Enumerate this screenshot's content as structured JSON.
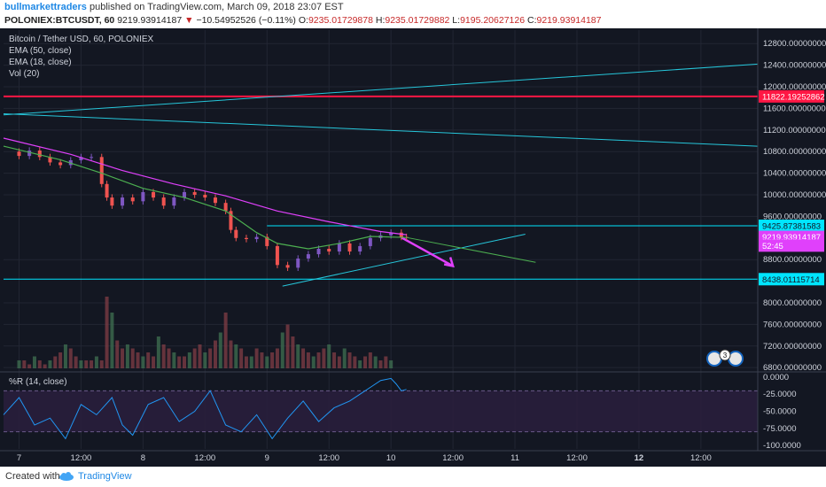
{
  "header": {
    "author": "bullmarkettraders",
    "published": "published on TradingView.com, March 09, 2018 23:07 EST",
    "symbol": "POLONIEX:BTCUSDT, 60",
    "last_price": "9219.93914187",
    "change": "−10.54952526 (−0.11%)",
    "open_label": "O:",
    "open": "9235.01729878",
    "high_label": "H:",
    "high": "9235.01729882",
    "low_label": "L:",
    "low": "9195.20627126",
    "close_label": "C:",
    "close": "9219.93914187"
  },
  "legend": {
    "title": "Bitcoin / Tether USD, 60, POLONIEX",
    "ema50": "EMA (50, close)",
    "ema18": "EMA (18, close)",
    "vol": "Vol (20)",
    "wr": "%R (14, close)"
  },
  "price_axis": {
    "ticks": [
      "12800.00000000",
      "12400.00000000",
      "12000.00000000",
      "11600.00000000",
      "11200.00000000",
      "10800.00000000",
      "10400.00000000",
      "10000.00000000",
      "9600.00000000",
      "8800.00000000",
      "8000.00000000",
      "7600.00000000",
      "7200.00000000",
      "6800.00000000"
    ],
    "tick_values": [
      12800,
      12400,
      12000,
      11600,
      11200,
      10800,
      10400,
      10000,
      9600,
      8800,
      8000,
      7600,
      7200,
      6800
    ],
    "range": [
      6770,
      13050
    ],
    "markers": [
      {
        "label": "11822.19252862",
        "value": 11822.19,
        "bg": "#ff1744",
        "fg": "#ffffff"
      },
      {
        "label": "9425.87381583",
        "value": 9425.87,
        "bg": "#00e5ff",
        "fg": "#131722"
      },
      {
        "label": "9219.93914187",
        "value": 9219.94,
        "bg": "#e040fb",
        "fg": "#ffffff"
      },
      {
        "label": "52:45",
        "value": 9060,
        "bg": "#e040fb",
        "fg": "#ffffff"
      },
      {
        "label": "8438.01115714",
        "value": 8438.01,
        "bg": "#00e5ff",
        "fg": "#131722"
      }
    ]
  },
  "wr_axis": {
    "ticks": [
      "0.0000",
      "-25.0000",
      "-50.0000",
      "-75.0000",
      "-100.0000"
    ],
    "tick_values": [
      0,
      -25,
      -50,
      -75,
      -100
    ],
    "range": [
      -105,
      5
    ]
  },
  "time_axis": {
    "labels": [
      {
        "t": "7",
        "x": 0.0,
        "bold": false
      },
      {
        "t": "12:00",
        "x": 12,
        "bold": false
      },
      {
        "t": "8",
        "x": 24,
        "bold": false
      },
      {
        "t": "12:00",
        "x": 36,
        "bold": false
      },
      {
        "t": "9",
        "x": 48,
        "bold": false
      },
      {
        "t": "12:00",
        "x": 60,
        "bold": false
      },
      {
        "t": "10",
        "x": 72,
        "bold": false
      },
      {
        "t": "12:00",
        "x": 84,
        "bold": false
      },
      {
        "t": "11",
        "x": 96,
        "bold": false
      },
      {
        "t": "12:00",
        "x": 108,
        "bold": false
      },
      {
        "t": "12",
        "x": 120,
        "bold": true
      },
      {
        "t": "12:00",
        "x": 132,
        "bold": false
      }
    ],
    "range_hours": [
      -3,
      143
    ]
  },
  "badges": {
    "flag_count": "3"
  },
  "footer": {
    "created": "Created with",
    "brand": "TradingView"
  },
  "colors": {
    "bg": "#131722",
    "up": "#7e57c2",
    "down": "#ef5350",
    "ema50": "#e040fb",
    "ema18": "#4caf50",
    "trend": "#26c6da",
    "res": "#ff1744",
    "sup": "#00e5ff",
    "arrow": "#e040fb",
    "wr": "#2196f3"
  },
  "chart_data": [
    {
      "type": "candlestick",
      "title": "Bitcoin / Tether USD, 60, POLONIEX",
      "x_unit": "hours since Mar 7 00:00",
      "ylim": [
        6770,
        13050
      ],
      "series": [
        {
          "name": "close (hourly, approx)",
          "t": [
            -2,
            0,
            2,
            4,
            6,
            8,
            10,
            12,
            14,
            16,
            17,
            18,
            20,
            22,
            24,
            26,
            28,
            30,
            32,
            34,
            36,
            38,
            40,
            41,
            42,
            44,
            46,
            48,
            50,
            52,
            54,
            56,
            58,
            60,
            62,
            64,
            66,
            68,
            70,
            72,
            74,
            75
          ],
          "values": [
            10800,
            10720,
            10820,
            10700,
            10600,
            10550,
            10640,
            10700,
            10700,
            10200,
            9950,
            9800,
            9950,
            9880,
            10050,
            9950,
            9800,
            9950,
            10050,
            10000,
            9950,
            9850,
            9700,
            9350,
            9200,
            9180,
            9220,
            9050,
            8700,
            8650,
            8820,
            8900,
            9000,
            8950,
            9100,
            8950,
            9050,
            9200,
            9250,
            9300,
            9220,
            9219.94
          ]
        },
        {
          "name": "EMA (50, close)",
          "t": [
            -3,
            10,
            20,
            30,
            40,
            50,
            60,
            70,
            75
          ],
          "values": [
            11050,
            10750,
            10450,
            10200,
            9980,
            9700,
            9500,
            9320,
            9260
          ]
        },
        {
          "name": "EMA (18, close)",
          "t": [
            -3,
            8,
            16,
            24,
            32,
            40,
            46,
            50,
            56,
            62,
            68,
            75
          ],
          "values": [
            10900,
            10650,
            10400,
            10120,
            9950,
            9700,
            9300,
            9100,
            9000,
            9100,
            9230,
            9210
          ]
        }
      ],
      "drawings": [
        {
          "name": "horizontal resistance",
          "price": 11822.19
        },
        {
          "name": "horizontal level",
          "price": 9425.87
        },
        {
          "name": "horizontal support",
          "price": 8438.01
        },
        {
          "name": "rising long trendline",
          "from": [
            -3,
            11480
          ],
          "to": [
            143,
            12420
          ]
        },
        {
          "name": "falling long trendline",
          "from": [
            -3,
            11500
          ],
          "to": [
            143,
            10900
          ]
        },
        {
          "name": "short rising trendline",
          "from": [
            51,
            8310
          ],
          "to": [
            98,
            9270
          ]
        },
        {
          "name": "forecast arrow",
          "from": [
            74,
            9210
          ],
          "to": [
            84,
            8680
          ]
        }
      ]
    },
    {
      "type": "bar",
      "title": "Vol (20)",
      "values": [
        2,
        2,
        1,
        3,
        2,
        1,
        2,
        3,
        4,
        6,
        5,
        3,
        2,
        2,
        2,
        3,
        2,
        18,
        14,
        7,
        5,
        6,
        5,
        4,
        3,
        4,
        3,
        8,
        6,
        5,
        4,
        3,
        3,
        4,
        5,
        6,
        4,
        5,
        7,
        9,
        14,
        7,
        6,
        5,
        3,
        3,
        5,
        4,
        3,
        4,
        5,
        9,
        11,
        8,
        6,
        5,
        4,
        3,
        4,
        5,
        6,
        4,
        3,
        5,
        4,
        3,
        2,
        3,
        4,
        3,
        2,
        3,
        2
      ]
    },
    {
      "type": "line",
      "title": "%R (14, close)",
      "ylim": [
        -105,
        5
      ],
      "x": [
        -3,
        0,
        3,
        6,
        9,
        12,
        15,
        18,
        20,
        22,
        25,
        28,
        31,
        34,
        37,
        40,
        43,
        46,
        49,
        52,
        55,
        58,
        61,
        64,
        66,
        68,
        70,
        72,
        73,
        74,
        75
      ],
      "values": [
        -55,
        -30,
        -70,
        -60,
        -90,
        -40,
        -55,
        -30,
        -70,
        -85,
        -40,
        -30,
        -65,
        -50,
        -20,
        -70,
        -80,
        -55,
        -90,
        -60,
        -35,
        -65,
        -45,
        -35,
        -25,
        -15,
        -5,
        -2,
        -10,
        -20,
        -18
      ]
    }
  ]
}
